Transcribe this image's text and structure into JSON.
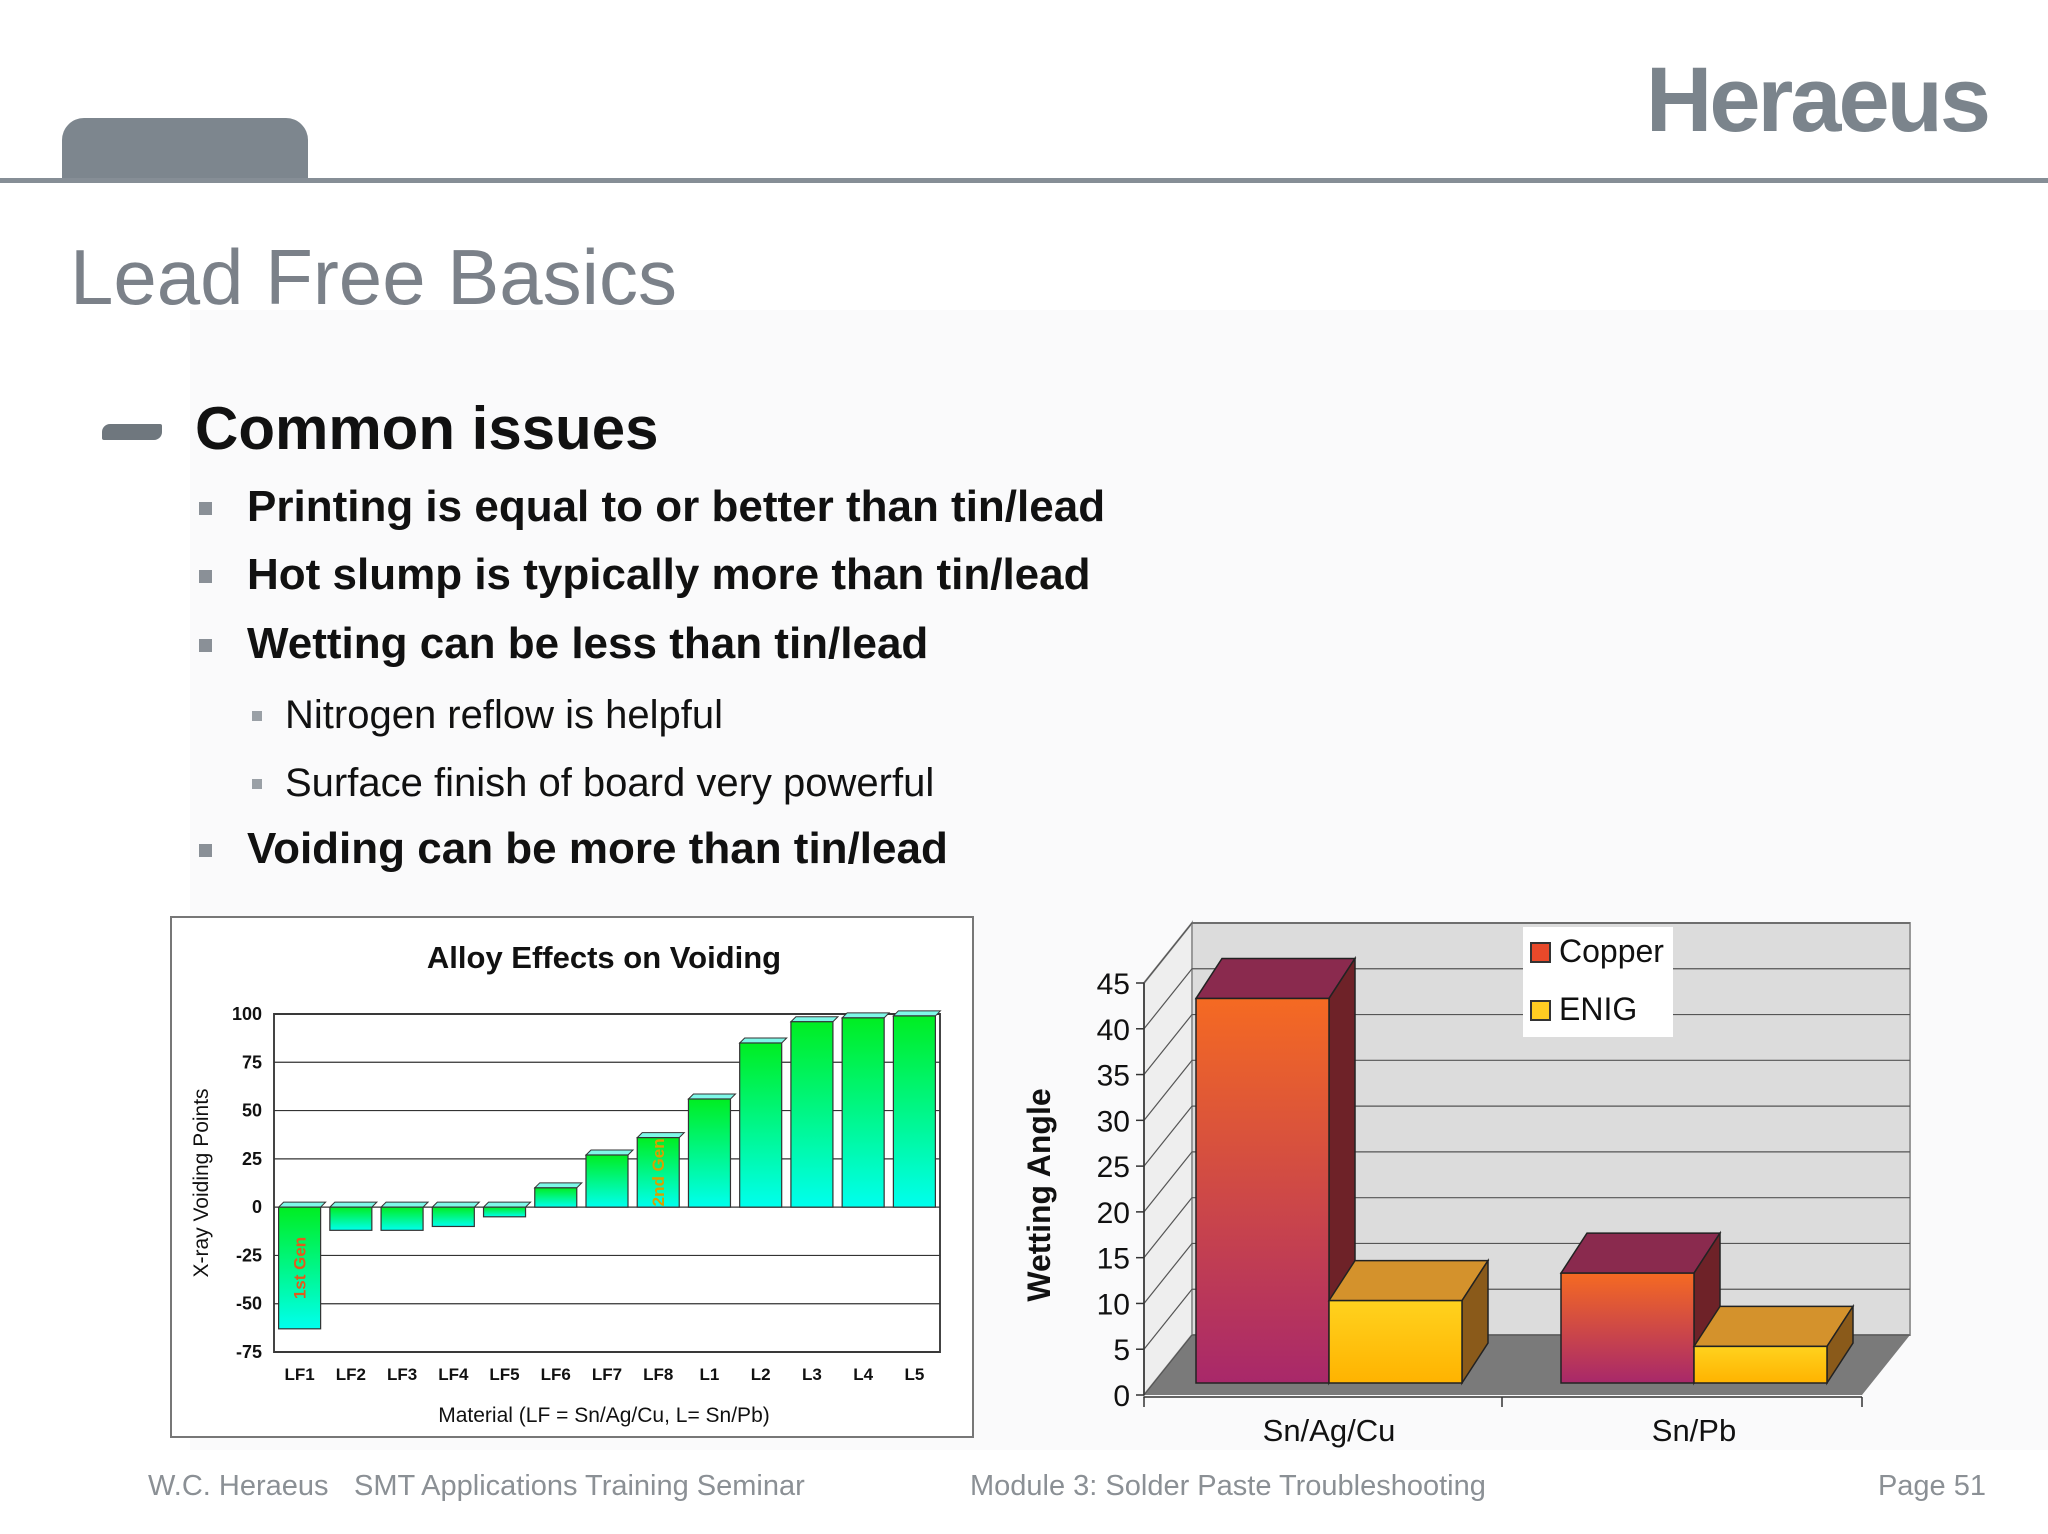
{
  "brand": {
    "logo_text": "Heraeus"
  },
  "slide": {
    "title": "Lead Free Basics",
    "heading": "Common issues",
    "bullets": [
      "Printing is equal to or better than tin/lead",
      "Hot slump is typically more than tin/lead",
      "Wetting can be less than tin/lead",
      "Voiding can be more than tin/lead"
    ],
    "sub_bullets": [
      "Nitrogen reflow is helpful",
      "Surface finish of board very powerful"
    ]
  },
  "footer": {
    "company": "W.C. Heraeus",
    "seminar": "SMT Applications Training Seminar",
    "module": "Module 3: Solder Paste Troubleshooting",
    "page": "Page 51"
  },
  "chart_data": [
    {
      "type": "bar",
      "title": "Alloy Effects on Voiding",
      "xlabel": "Material (LF = Sn/Ag/Cu, L= Sn/Pb)",
      "ylabel": "X-ray Voiding Points",
      "ylim": [
        -75,
        100
      ],
      "yticks": [
        "100",
        "75",
        "50",
        "25",
        "0",
        "-25",
        "-50",
        "-75"
      ],
      "grid": true,
      "categories": [
        "LF1",
        "LF2",
        "LF3",
        "LF4",
        "LF5",
        "LF6",
        "LF7",
        "LF8",
        "L1",
        "L2",
        "L3",
        "L4",
        "L5"
      ],
      "values": [
        -63,
        -12,
        -12,
        -10,
        -5,
        10,
        27,
        36,
        56,
        85,
        96,
        98,
        99
      ],
      "annotations": [
        {
          "category": "LF1",
          "text": "1st Gen",
          "color": "#e25a1c"
        },
        {
          "category": "LF8",
          "text": "2nd Gen",
          "color": "#d8a000"
        }
      ],
      "colors": {
        "top": "#00ee22",
        "bottom": "#00ffee"
      }
    },
    {
      "type": "bar",
      "title": "",
      "xlabel": "",
      "ylabel": "Wetting Angle",
      "ylim": [
        0,
        45
      ],
      "yticks": [
        "0",
        "5",
        "10",
        "15",
        "20",
        "25",
        "30",
        "35",
        "40",
        "45"
      ],
      "grid": true,
      "legend_position": "top-right",
      "categories": [
        "Sn/Ag/Cu",
        "Sn/Pb"
      ],
      "series": [
        {
          "name": "Copper",
          "values": [
            42,
            12
          ],
          "color": "#e8492a"
        },
        {
          "name": "ENIG",
          "values": [
            9,
            4
          ],
          "color": "#ffcc22"
        }
      ]
    }
  ]
}
